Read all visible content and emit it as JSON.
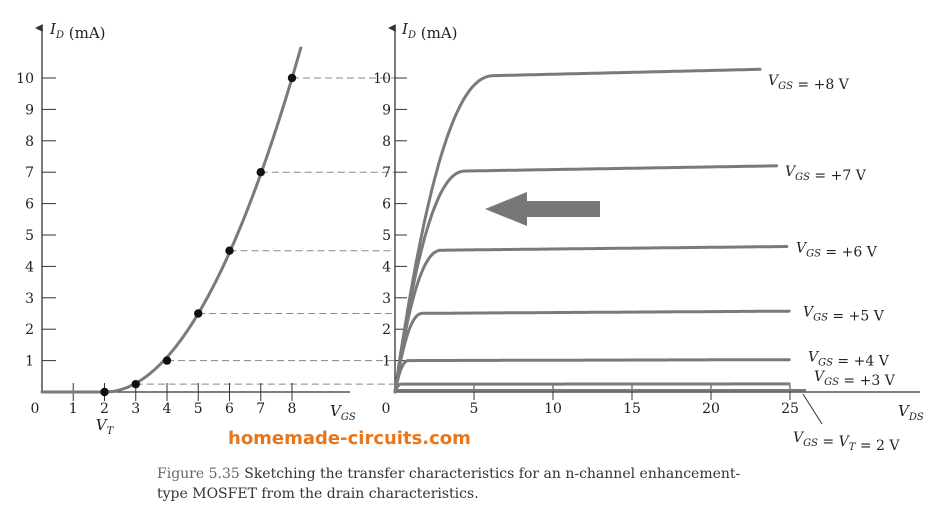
{
  "watermark": "homemade-circuits.com",
  "caption": {
    "label": "Figure 5.35",
    "line1": "Sketching the transfer characteristics for an n-channel enhancement-",
    "line2": "type MOSFET from the drain characteristics."
  },
  "chart_data": [
    {
      "type": "line",
      "ylabel": "I_D (mA)",
      "xlabel": "V_GS",
      "xlim": [
        0,
        8
      ],
      "ylim": [
        0,
        10
      ],
      "x_ticks": [
        0,
        1,
        2,
        3,
        4,
        5,
        6,
        7,
        8
      ],
      "y_ticks": [
        1,
        2,
        3,
        4,
        5,
        6,
        7,
        8,
        9,
        10
      ],
      "annotation": "V_T",
      "annotation_at": 2,
      "points": [
        {
          "x": 2,
          "y": 0
        },
        {
          "x": 3,
          "y": 0.25
        },
        {
          "x": 4,
          "y": 1
        },
        {
          "x": 5,
          "y": 2.5
        },
        {
          "x": 6,
          "y": 4.5
        },
        {
          "x": 7,
          "y": 7
        },
        {
          "x": 8,
          "y": 10
        }
      ],
      "grid": false
    },
    {
      "type": "line",
      "ylabel": "I_D (mA)",
      "xlabel": "V_DS",
      "xlim": [
        0,
        25
      ],
      "ylim": [
        0,
        10
      ],
      "x_ticks": [
        0,
        5,
        10,
        15,
        20,
        25
      ],
      "y_ticks": [
        1,
        2,
        3,
        4,
        5,
        6,
        7,
        8,
        9,
        10
      ],
      "series": [
        {
          "name": "V_GS = +8 V",
          "saturation": 10
        },
        {
          "name": "V_GS = +7 V",
          "saturation": 7
        },
        {
          "name": "V_GS = +6 V",
          "saturation": 4.5
        },
        {
          "name": "V_GS = +5 V",
          "saturation": 2.5
        },
        {
          "name": "V_GS = +4 V",
          "saturation": 1
        },
        {
          "name": "V_GS = +3 V",
          "saturation": 0.25
        }
      ],
      "bottom_label": "V_GS = V_T = 2 V",
      "arrow": "left",
      "grid": false
    }
  ]
}
